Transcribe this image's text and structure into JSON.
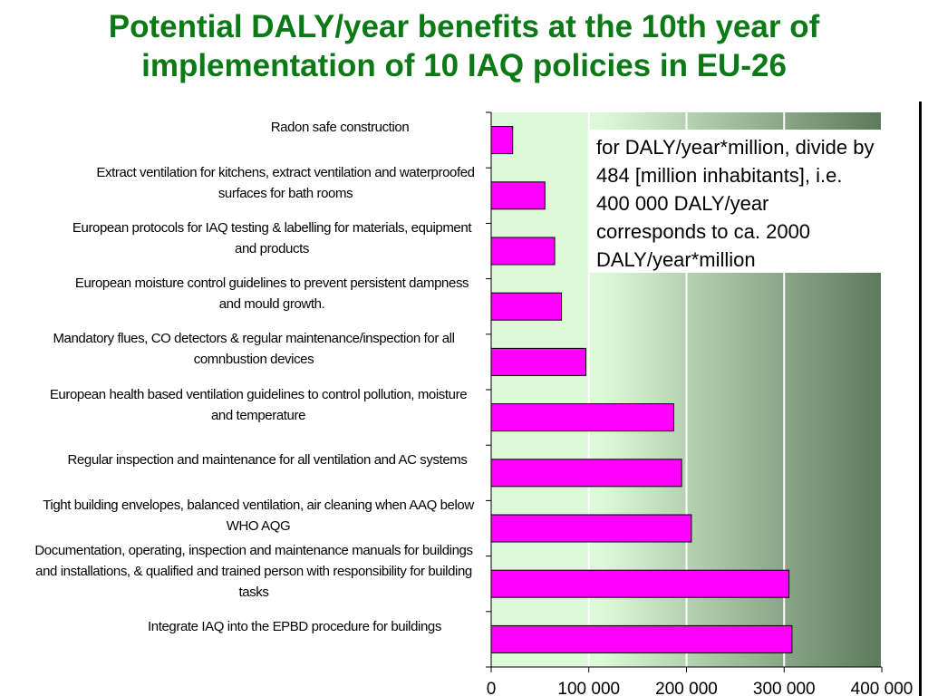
{
  "title_line1": "Potential DALY/year benefits at the 10th year of",
  "title_line2": "implementation of 10 IAQ policies in EU-26",
  "note": "for DALY/year*million, divide by 484 [million inhabitants], i.e. 400 000 DALY/year corresponds to ca. 2000 DALY/year*million",
  "colors": {
    "title": "#0b7a16",
    "bar_fill": "#ff00ff",
    "bar_stroke": "#000000",
    "bg_light": "#dcfad7",
    "bg_dark": "#5b7a5a"
  },
  "chart_data": {
    "type": "bar",
    "orientation": "horizontal",
    "categories": [
      "Radon safe construction",
      "Extract ventilation for kitchens, extract ventilation and waterproofed surfaces for bath rooms",
      "European protocols for IAQ testing & labelling for materials, equipment and products",
      "European moisture control guidelines to prevent persistent dampness and mould growth.",
      "Mandatory flues, CO detectors & regular maintenance/inspection for all comnbustion devices",
      "European health based ventilation guidelines to control pollution, moisture and temperature",
      "Regular inspection and maintenance for all ventilation and AC systems",
      "Tight building envelopes, balanced ventilation, air cleaning when AAQ below WHO AQG",
      "Documentation, operating, inspection and maintenance manuals for buildings and installations, & qualified and trained person with responsibility for building tasks",
      "Integrate IAQ into the EPBD procedure for buildings"
    ],
    "values": [
      22000,
      55000,
      65000,
      72000,
      97000,
      187000,
      195000,
      205000,
      305000,
      308000
    ],
    "xlim": [
      0,
      400000
    ],
    "xticks": [
      0,
      100000,
      200000,
      300000,
      400000
    ],
    "xtick_labels": [
      "0",
      "100 000",
      "200 000",
      "300 000",
      "400 000"
    ],
    "grid": "vertical",
    "xlabel": "",
    "ylabel": ""
  }
}
